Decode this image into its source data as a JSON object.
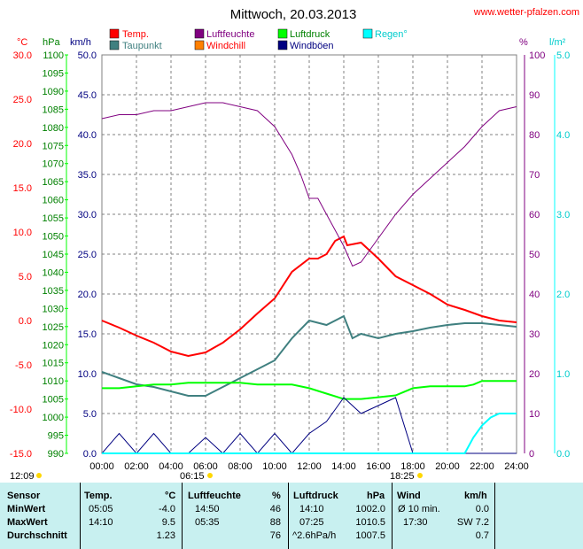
{
  "title": "Mittwoch, 20.03.2013",
  "source": "www.wetter-pfalzen.com",
  "units": {
    "temp": "°C",
    "press": "hPa",
    "wind": "km/h",
    "humid": "%",
    "rain": "l/m²"
  },
  "legend": [
    {
      "label": "Temp.",
      "color": "#ff0000"
    },
    {
      "label": "Luftfeuchte",
      "color": "#800080"
    },
    {
      "label": "Luftdruck",
      "color": "#00ff00"
    },
    {
      "label": "Regen°",
      "color": "#00ffff"
    },
    {
      "label": "Taupunkt",
      "color": "#408080"
    },
    {
      "label": "Windchill",
      "color": "#ff8000"
    },
    {
      "label": "Windböen",
      "color": "#000080"
    }
  ],
  "axes": {
    "temp_ticks": [
      "30.0",
      "25.0",
      "20.0",
      "15.0",
      "10.0",
      "5.0",
      "0.0",
      "-5.0",
      "-10.0",
      "-15.0"
    ],
    "press_ticks": [
      "1100",
      "1095",
      "1090",
      "1085",
      "1080",
      "1075",
      "1070",
      "1065",
      "1060",
      "1055",
      "1050",
      "1045",
      "1040",
      "1035",
      "1030",
      "1025",
      "1020",
      "1015",
      "1010",
      "1005",
      "1000",
      "995",
      "990"
    ],
    "wind_ticks": [
      "50.0",
      "45.0",
      "40.0",
      "35.0",
      "30.0",
      "25.0",
      "20.0",
      "15.0",
      "10.0",
      "5.0",
      "0.0"
    ],
    "humid_ticks": [
      "100",
      "90",
      "80",
      "70",
      "60",
      "50",
      "40",
      "30",
      "20",
      "10",
      "0"
    ],
    "rain_ticks": [
      "5.0",
      "4.0",
      "3.0",
      "2.0",
      "1.0",
      "0.0"
    ],
    "time_ticks": [
      "00:00",
      "02:00",
      "04:00",
      "06:00",
      "08:00",
      "10:00",
      "12:00",
      "14:00",
      "16:00",
      "18:00",
      "20:00",
      "22:00",
      "24:00"
    ]
  },
  "sun": {
    "sunrise": "06:15",
    "sunset": "18:25",
    "moon": "12:09"
  },
  "chart_data": {
    "type": "line",
    "title": "Mittwoch, 20.03.2013",
    "x_unit": "hours",
    "x_range": [
      0,
      24
    ],
    "series": [
      {
        "name": "Temp.",
        "axis": "temp",
        "x": [
          0,
          1,
          2,
          3,
          4,
          5,
          6,
          7,
          8,
          9,
          10,
          11,
          12,
          12.5,
          13,
          13.5,
          14,
          14.2,
          15,
          16,
          17,
          18,
          19,
          20,
          21,
          22,
          23,
          24
        ],
        "y": [
          0.0,
          -0.8,
          -1.7,
          -2.5,
          -3.5,
          -4.0,
          -3.6,
          -2.5,
          -1.0,
          0.8,
          2.5,
          5.5,
          7.0,
          7.0,
          7.5,
          9.0,
          9.5,
          8.5,
          8.8,
          7.0,
          5.0,
          4.0,
          3.0,
          1.8,
          1.2,
          0.5,
          0.0,
          -0.2
        ]
      },
      {
        "name": "Taupunkt",
        "axis": "temp",
        "x": [
          0,
          1,
          2,
          3,
          4,
          5,
          6,
          7,
          8,
          9,
          10,
          11,
          12,
          13,
          14,
          14.5,
          15,
          16,
          17,
          18,
          19,
          20,
          21,
          22,
          23,
          24
        ],
        "y": [
          -5.8,
          -6.5,
          -7.2,
          -7.5,
          -8.0,
          -8.5,
          -8.5,
          -7.5,
          -6.5,
          -5.5,
          -4.5,
          -2.0,
          0.0,
          -0.5,
          0.5,
          -2.0,
          -1.5,
          -2.0,
          -1.5,
          -1.2,
          -0.8,
          -0.5,
          -0.3,
          -0.3,
          -0.5,
          -0.7
        ]
      },
      {
        "name": "Luftfeuchte",
        "axis": "humid",
        "x": [
          0,
          1,
          2,
          3,
          4,
          5,
          6,
          7,
          8,
          9,
          10,
          11,
          11.5,
          12,
          12.5,
          13,
          13.5,
          14,
          14.5,
          15,
          16,
          17,
          18,
          19,
          20,
          21,
          22,
          23,
          24
        ],
        "y": [
          84,
          85,
          85,
          86,
          86,
          87,
          88,
          88,
          87,
          86,
          82,
          75,
          70,
          64,
          64,
          60,
          56,
          52,
          47,
          48,
          54,
          60,
          65,
          69,
          73,
          77,
          82,
          86,
          87
        ]
      },
      {
        "name": "Luftdruck",
        "axis": "press",
        "x": [
          0,
          1,
          2,
          3,
          4,
          5,
          6,
          7,
          8,
          9,
          10,
          11,
          12,
          13,
          14,
          15,
          16,
          17,
          18,
          19,
          20,
          21,
          21.5,
          22,
          23,
          24
        ],
        "y": [
          1008,
          1008,
          1008.5,
          1009,
          1009,
          1009.5,
          1009.5,
          1009.5,
          1009.5,
          1009,
          1009,
          1009,
          1008,
          1006.5,
          1005,
          1005,
          1005.5,
          1006,
          1008,
          1008.5,
          1008.5,
          1008.5,
          1009,
          1010,
          1010,
          1010
        ]
      },
      {
        "name": "Windböen",
        "axis": "wind",
        "x": [
          0,
          1,
          2,
          3,
          4,
          5,
          6,
          7,
          8,
          9,
          10,
          11,
          12,
          13,
          14,
          15,
          16,
          17,
          18,
          19,
          20,
          21,
          22,
          23,
          24
        ],
        "y": [
          0,
          2.5,
          0,
          2.5,
          0,
          0,
          2,
          0,
          2.5,
          0,
          2.5,
          0,
          2.5,
          4,
          7,
          5,
          6,
          7,
          0,
          0,
          0,
          0,
          0,
          0,
          0
        ]
      },
      {
        "name": "Regen°",
        "axis": "rain",
        "x": [
          0,
          21,
          21.5,
          22,
          22.5,
          23,
          24
        ],
        "y": [
          0,
          0,
          0.2,
          0.35,
          0.45,
          0.5,
          0.5
        ]
      }
    ],
    "ylim": {
      "temp": [
        -15,
        30
      ],
      "press": [
        990,
        1100
      ],
      "wind": [
        0,
        50
      ],
      "humid": [
        0,
        100
      ],
      "rain": [
        0,
        5
      ]
    }
  },
  "table": {
    "headers": [
      "Sensor",
      "Temp.",
      "°C",
      "Luftfeuchte",
      "%",
      "Luftdruck",
      "hPa",
      "Wind",
      "km/h"
    ],
    "rows": [
      {
        "label": "MinWert",
        "t_time": "05:05",
        "t_val": "-4.0",
        "h_time": "14:50",
        "h_val": "46",
        "p_time": "14:10",
        "p_val": "1002.0",
        "w_time": "Ø 10 min.",
        "w_val": "0.0"
      },
      {
        "label": "MaxWert",
        "t_time": "14:10",
        "t_val": "9.5",
        "h_time": "05:35",
        "h_val": "88",
        "p_time": "07:25",
        "p_val": "1010.5",
        "w_time": "17:30",
        "w_val": "SW 7.2"
      },
      {
        "label": "Durchschnitt",
        "t_time": "",
        "t_val": "1.23",
        "h_time": "",
        "h_val": "76",
        "p_time": "^2.6hPa/h",
        "p_val": "1007.5",
        "w_time": "",
        "w_val": "0.7"
      }
    ]
  }
}
